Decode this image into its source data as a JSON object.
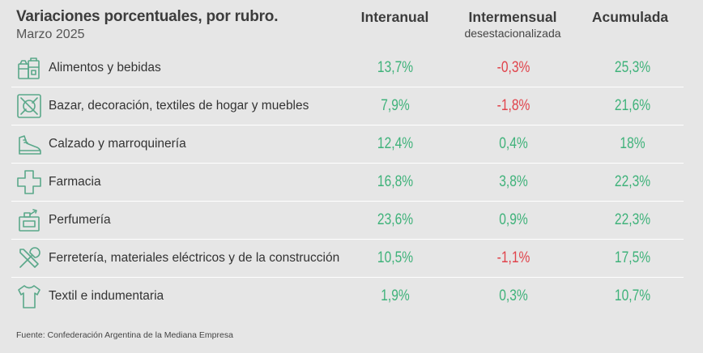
{
  "colors": {
    "positive": "#3fb27a",
    "negative": "#e0434b",
    "icon": "#5aa88a"
  },
  "chart_data": {
    "type": "table",
    "title": "Variaciones porcentuales, por rubro.",
    "subtitle": "Marzo 2025",
    "columns": [
      {
        "label": "Interanual",
        "sublabel": ""
      },
      {
        "label": "Intermensual",
        "sublabel": "desestacionalizada"
      },
      {
        "label": "Acumulada",
        "sublabel": ""
      }
    ],
    "rows": [
      {
        "icon": "grocery-bags-icon",
        "label": "Alimentos y bebidas",
        "values": [
          "13,7%",
          "-0,3%",
          "25,3%"
        ],
        "numeric": [
          13.7,
          -0.3,
          25.3
        ]
      },
      {
        "icon": "plate-cutlery-icon",
        "label": "Bazar, decoración, textiles de hogar y muebles",
        "values": [
          "7,9%",
          "-1,8%",
          "21,6%"
        ],
        "numeric": [
          7.9,
          -1.8,
          21.6
        ]
      },
      {
        "icon": "shoe-icon",
        "label": "Calzado y marroquinería",
        "values": [
          "12,4%",
          "0,4%",
          "18%"
        ],
        "numeric": [
          12.4,
          0.4,
          18
        ]
      },
      {
        "icon": "pharmacy-cross-icon",
        "label": "Farmacia",
        "values": [
          "16,8%",
          "3,8%",
          "22,3%"
        ],
        "numeric": [
          16.8,
          3.8,
          22.3
        ]
      },
      {
        "icon": "perfume-icon",
        "label": "Perfumería",
        "values": [
          "23,6%",
          "0,9%",
          "22,3%"
        ],
        "numeric": [
          23.6,
          0.9,
          22.3
        ]
      },
      {
        "icon": "tools-icon",
        "label": "Ferretería, materiales eléctricos y de la construcción",
        "values": [
          "10,5%",
          "-1,1%",
          "17,5%"
        ],
        "numeric": [
          10.5,
          -1.1,
          17.5
        ]
      },
      {
        "icon": "tshirt-icon",
        "label": "Textil e indumentaria",
        "values": [
          "1,9%",
          "0,3%",
          "10,7%"
        ],
        "numeric": [
          1.9,
          0.3,
          10.7
        ]
      }
    ],
    "source": "Fuente: Confederación Argentina de la Mediana Empresa"
  }
}
